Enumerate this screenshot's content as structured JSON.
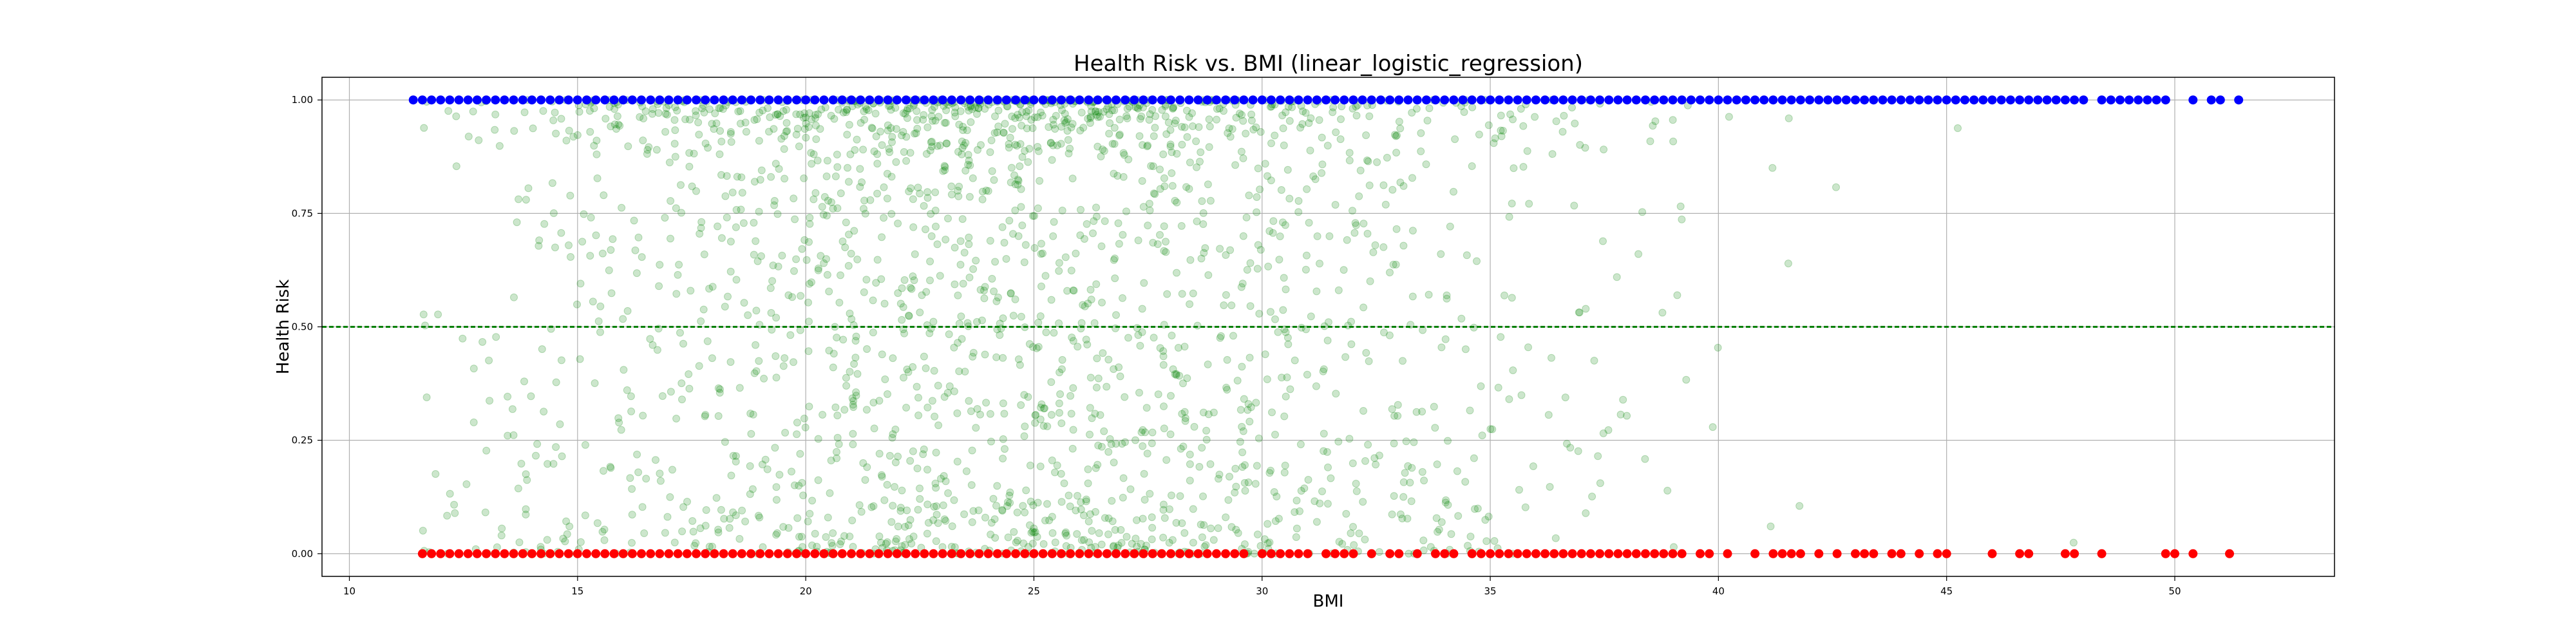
{
  "chart_data": {
    "type": "scatter",
    "title": "Health Risk vs. BMI (linear_logistic_regression)",
    "xlabel": "BMI",
    "ylabel": "Health Risk",
    "xlim": [
      9.4,
      53.5
    ],
    "ylim": [
      -0.05,
      1.05
    ],
    "xticks": [
      10,
      15,
      20,
      25,
      30,
      35,
      40,
      45,
      50
    ],
    "yticks": [
      0.0,
      0.25,
      0.5,
      0.75,
      1.0
    ],
    "xtick_labels": [
      "10",
      "15",
      "20",
      "25",
      "30",
      "35",
      "40",
      "45",
      "50"
    ],
    "ytick_labels": [
      "0.00",
      "0.25",
      "0.50",
      "0.75",
      "1.00"
    ],
    "grid": true,
    "threshold": 0.5,
    "colors": {
      "high_risk": "#0000ff",
      "low_risk": "#ff0000",
      "predicted": "#008000",
      "threshold": "#008000",
      "grid": "#b0b0b0"
    },
    "series": [
      {
        "role": "y_equals_1",
        "color": "#0000ff",
        "y": 1.0,
        "x": [
          11.4,
          11.6,
          11.8,
          12.0,
          12.2,
          12.4,
          12.6,
          12.8,
          13.0,
          13.2,
          13.4,
          13.6,
          13.8,
          14.0,
          14.2,
          14.4,
          14.6,
          14.8,
          15.0,
          15.2,
          15.4,
          15.6,
          15.8,
          16.0,
          16.2,
          16.4,
          16.6,
          16.8,
          17.0,
          17.2,
          17.4,
          17.6,
          17.8,
          18.0,
          18.2,
          18.4,
          18.6,
          18.8,
          19.0,
          19.2,
          19.4,
          19.6,
          19.8,
          20.0,
          20.2,
          20.4,
          20.6,
          20.8,
          21.0,
          21.2,
          21.4,
          21.6,
          21.8,
          22.0,
          22.2,
          22.4,
          22.6,
          22.8,
          23.0,
          23.2,
          23.4,
          23.6,
          23.8,
          24.0,
          24.2,
          24.4,
          24.6,
          24.8,
          25.0,
          25.2,
          25.4,
          25.6,
          25.8,
          26.0,
          26.2,
          26.4,
          26.6,
          26.8,
          27.0,
          27.2,
          27.4,
          27.6,
          27.8,
          28.0,
          28.2,
          28.4,
          28.6,
          28.8,
          29.0,
          29.2,
          29.4,
          29.6,
          29.8,
          30.0,
          30.2,
          30.4,
          30.6,
          30.8,
          31.0,
          31.2,
          31.4,
          31.6,
          31.8,
          32.0,
          32.2,
          32.4,
          32.6,
          32.8,
          33.0,
          33.2,
          33.4,
          33.6,
          33.8,
          34.0,
          34.2,
          34.4,
          34.6,
          34.8,
          35.0,
          35.2,
          35.4,
          35.6,
          35.8,
          36.0,
          36.2,
          36.4,
          36.6,
          36.8,
          37.0,
          37.2,
          37.4,
          37.6,
          37.8,
          38.0,
          38.2,
          38.4,
          38.6,
          38.8,
          39.0,
          39.2,
          39.4,
          39.6,
          39.8,
          40.0,
          40.2,
          40.4,
          40.6,
          40.8,
          41.0,
          41.2,
          41.4,
          41.6,
          41.8,
          42.0,
          42.2,
          42.4,
          42.6,
          42.8,
          43.0,
          43.2,
          43.4,
          43.6,
          43.8,
          44.0,
          44.2,
          44.4,
          44.6,
          44.8,
          45.0,
          45.2,
          45.4,
          45.6,
          45.8,
          46.0,
          46.2,
          46.4,
          46.6,
          46.8,
          47.0,
          47.2,
          47.4,
          47.6,
          47.8,
          48.0,
          48.4,
          48.6,
          48.8,
          49.0,
          49.2,
          49.4,
          49.6,
          49.8,
          50.4,
          50.8,
          51.0,
          51.4
        ]
      },
      {
        "role": "y_equals_0",
        "color": "#ff0000",
        "y": 0.0,
        "x": [
          11.6,
          11.8,
          12.0,
          12.2,
          12.4,
          12.6,
          12.8,
          13.0,
          13.2,
          13.4,
          13.6,
          13.8,
          14.0,
          14.2,
          14.4,
          14.6,
          14.8,
          15.0,
          15.2,
          15.4,
          15.6,
          15.8,
          16.0,
          16.2,
          16.4,
          16.6,
          16.8,
          17.0,
          17.2,
          17.4,
          17.6,
          17.8,
          18.0,
          18.2,
          18.4,
          18.6,
          18.8,
          19.0,
          19.2,
          19.4,
          19.6,
          19.8,
          20.0,
          20.2,
          20.4,
          20.6,
          20.8,
          21.0,
          21.2,
          21.4,
          21.6,
          21.8,
          22.0,
          22.2,
          22.4,
          22.6,
          22.8,
          23.0,
          23.2,
          23.4,
          23.6,
          23.8,
          24.0,
          24.2,
          24.4,
          24.6,
          24.8,
          25.0,
          25.2,
          25.4,
          25.6,
          25.8,
          26.0,
          26.2,
          26.4,
          26.6,
          26.8,
          27.0,
          27.2,
          27.4,
          27.6,
          27.8,
          28.0,
          28.2,
          28.4,
          28.6,
          28.8,
          29.0,
          29.2,
          29.4,
          29.6,
          30.0,
          30.2,
          30.4,
          30.6,
          30.8,
          31.0,
          31.4,
          31.6,
          31.8,
          32.0,
          32.4,
          32.8,
          33.0,
          33.4,
          33.8,
          34.0,
          34.2,
          34.6,
          34.8,
          35.0,
          35.2,
          35.4,
          35.6,
          35.8,
          36.0,
          36.2,
          36.4,
          36.6,
          36.8,
          37.0,
          37.2,
          37.4,
          37.6,
          37.8,
          38.0,
          38.2,
          38.4,
          38.6,
          38.8,
          39.0,
          39.2,
          39.6,
          39.8,
          40.2,
          40.8,
          41.2,
          41.4,
          41.6,
          41.8,
          42.2,
          42.6,
          43.0,
          43.2,
          43.4,
          43.8,
          44.0,
          44.4,
          44.8,
          45.0,
          46.0,
          46.6,
          46.8,
          47.6,
          47.8,
          48.4,
          49.8,
          50.0,
          50.4,
          51.2
        ]
      },
      {
        "role": "predicted_probability",
        "color": "#008000",
        "alpha": 0.2,
        "generator": {
          "count": 2200,
          "seed": 7,
          "x_mean": 24.5,
          "x_sd": 6.2,
          "x_min": 11.6,
          "x_max": 50.2
        }
      }
    ]
  }
}
